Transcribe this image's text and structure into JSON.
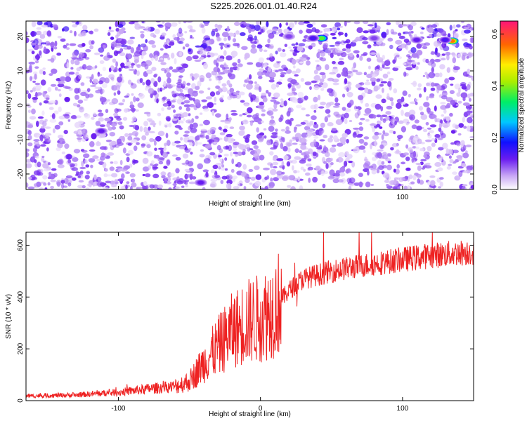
{
  "title": "S225.2026.001.01.40.R24",
  "chart_data": [
    {
      "type": "heatmap",
      "xlabel": "Height of straight line (km)",
      "ylabel": "Frequency (Hz)",
      "xlim": [
        -165,
        150
      ],
      "ylim": [
        -24.5,
        24.5
      ],
      "x_ticks": [
        -100,
        0,
        100
      ],
      "x_tick_labels": [
        "-100",
        "0",
        "100"
      ],
      "y_ticks": [
        -20,
        -10,
        0,
        10,
        20
      ],
      "y_tick_labels": [
        "-20",
        "-10",
        "0",
        "10",
        "20"
      ],
      "colorbar": {
        "label": "Normalized spectral amplitude",
        "range": [
          0,
          0.65
        ],
        "ticks": [
          0.0,
          0.2,
          0.4,
          0.6
        ],
        "tick_labels": [
          "0.0",
          "0.2",
          "0.4",
          "0.6"
        ],
        "colormap": "rainbow-white-to-pink"
      },
      "background_level": 0.06,
      "strong_features": [
        {
          "x": 43,
          "y": 19.5,
          "amplitude": 0.38
        },
        {
          "x": 135,
          "y": 18.7,
          "amplitude": 0.55
        },
        {
          "x": 37,
          "y": 19.5,
          "amplitude": 0.14
        },
        {
          "x": 110,
          "y": 19.0,
          "amplitude": 0.12
        },
        {
          "x": 130,
          "y": 19.0,
          "amplitude": 0.14
        },
        {
          "x": 20,
          "y": 20.0,
          "amplitude": 0.1
        },
        {
          "x": 80,
          "y": 19.5,
          "amplitude": 0.1
        },
        {
          "x": -112,
          "y": -7.5,
          "amplitude": 0.12
        },
        {
          "x": -42,
          "y": -22.5,
          "amplitude": 0.12
        }
      ]
    },
    {
      "type": "line",
      "xlabel": "Height of straight line (km)",
      "ylabel": "SNR (10 * v/v)",
      "xlim": [
        -165,
        150
      ],
      "ylim": [
        0,
        650
      ],
      "x_ticks": [
        -100,
        0,
        100
      ],
      "x_tick_labels": [
        "-100",
        "0",
        "100"
      ],
      "y_ticks": [
        0,
        200,
        400,
        600
      ],
      "y_tick_labels": [
        "0",
        "200",
        "400",
        "600"
      ],
      "series": [
        {
          "color": "#ee2222",
          "trend": [
            [
              -165,
              18
            ],
            [
              -130,
              22
            ],
            [
              -100,
              32
            ],
            [
              -80,
              45
            ],
            [
              -60,
              55
            ],
            [
              -50,
              75
            ],
            [
              -40,
              145
            ],
            [
              -30,
              210
            ],
            [
              -20,
              270
            ],
            [
              -10,
              305
            ],
            [
              0,
              320
            ],
            [
              10,
              360
            ],
            [
              20,
              425
            ],
            [
              30,
              470
            ],
            [
              50,
              500
            ],
            [
              70,
              520
            ],
            [
              100,
              545
            ],
            [
              120,
              560
            ],
            [
              150,
              575
            ]
          ],
          "sample_count": 1260
        }
      ]
    }
  ]
}
